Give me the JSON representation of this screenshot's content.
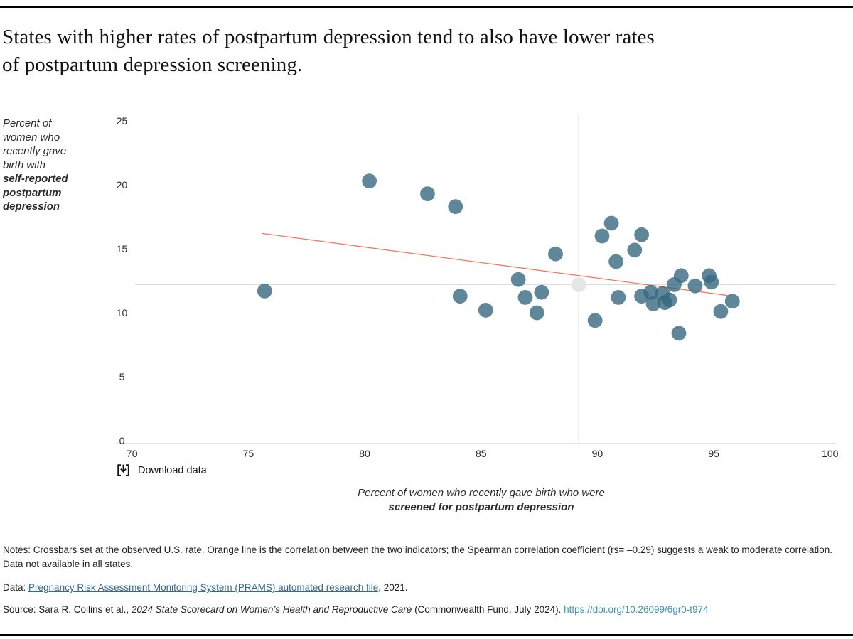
{
  "page": {
    "title_lines": [
      "States with higher rates of postpartum depression tend to also have lower rates",
      "of postpartum depression screening."
    ],
    "download_label": "Download data",
    "notes": "Notes: Crossbars set at the observed U.S. rate. Orange line is the correlation between the two indicators; the Spearman correlation coefficient (rs= –0.29) suggests a weak to moderate correlation. Data not available in all states.",
    "data_line": {
      "prefix": "Data: ",
      "link": "Pregnancy Risk Assessment Monitoring System (PRAMS) automated research file",
      "suffix": ", 2021."
    },
    "source_line": {
      "prefix": "Source: Sara R. Collins et al., ",
      "italic": "2024 State Scorecard on Women’s Health and Reproductive Care",
      "middle": " (Commonwealth Fund, July 2024). ",
      "link": "https://doi.org/10.26099/6gr0-t974"
    }
  },
  "chart_data": {
    "type": "scatter",
    "xlabel_lines": [
      "Percent of women who recently gave birth who were",
      "screened for postpartum depression"
    ],
    "ylabel": {
      "normal": "Percent of women who recently gave birth with",
      "bold": "self-reported postpartum depression"
    },
    "xlim": [
      70,
      100
    ],
    "ylim": [
      0,
      25
    ],
    "x_ticks": [
      70,
      75,
      80,
      85,
      90,
      95,
      100
    ],
    "y_ticks": [
      0,
      5,
      10,
      15,
      20,
      25
    ],
    "grid": false,
    "points": [
      [
        75.7,
        11.7
      ],
      [
        80.2,
        20.3
      ],
      [
        82.7,
        19.3
      ],
      [
        83.9,
        18.3
      ],
      [
        84.1,
        11.3
      ],
      [
        85.2,
        10.2
      ],
      [
        86.6,
        12.6
      ],
      [
        86.9,
        11.2
      ],
      [
        87.4,
        10.0
      ],
      [
        87.6,
        11.6
      ],
      [
        88.2,
        14.6
      ],
      [
        89.9,
        9.4
      ],
      [
        90.2,
        16.0
      ],
      [
        90.6,
        17.0
      ],
      [
        90.8,
        14.0
      ],
      [
        90.9,
        11.2
      ],
      [
        91.6,
        14.9
      ],
      [
        91.9,
        16.1
      ],
      [
        91.9,
        11.3
      ],
      [
        92.3,
        11.6
      ],
      [
        92.4,
        10.7
      ],
      [
        92.8,
        11.5
      ],
      [
        92.9,
        10.8
      ],
      [
        93.1,
        11.0
      ],
      [
        93.3,
        12.2
      ],
      [
        93.5,
        8.4
      ],
      [
        93.6,
        12.9
      ],
      [
        94.2,
        12.1
      ],
      [
        94.8,
        12.9
      ],
      [
        94.9,
        12.4
      ],
      [
        95.3,
        10.1
      ],
      [
        95.8,
        10.9
      ]
    ],
    "us_point": [
      89.2,
      12.2
    ],
    "crossbars": {
      "x": 89.2,
      "y": 12.2
    },
    "trendline": {
      "x1": 75.6,
      "y1": 16.2,
      "x2": 95.8,
      "y2": 11.3
    },
    "spearman_rs": -0.29,
    "colors": {
      "point": "#376980",
      "point_opacity": 0.8,
      "us_point": "#e5e5e3",
      "trend": "#f4785a",
      "crossbar": "#dcdcdc",
      "axis": "#c8c8c8"
    }
  }
}
